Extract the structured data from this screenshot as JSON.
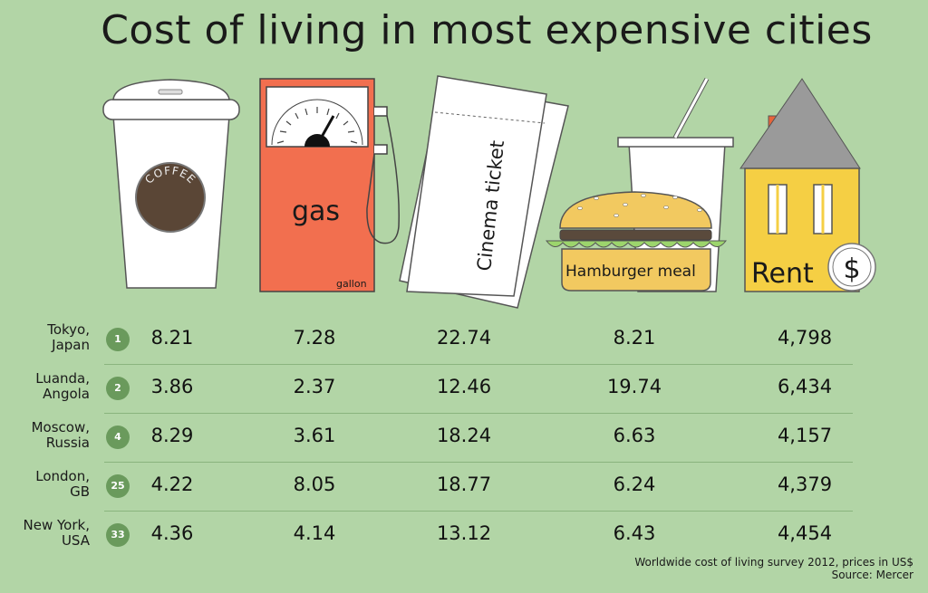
{
  "title": "Cost of living in most expensive cities",
  "icons": {
    "coffee_label": "COFFEE",
    "gas_label": "gas",
    "gallon_label": "gallon",
    "ticket_label": "Cinema ticket",
    "hamburger_label": "Hamburger meal",
    "rent_label": "Rent",
    "dollar_symbol": "$"
  },
  "chart_data": {
    "type": "table",
    "columns": [
      "COFFEE",
      "gas",
      "Cinema ticket",
      "Hamburger meal",
      "Rent"
    ],
    "rows": [
      {
        "city": "Tokyo,",
        "country": "Japan",
        "rank": "1",
        "values": [
          "8.21",
          "7.28",
          "22.74",
          "8.21",
          "4,798"
        ]
      },
      {
        "city": "Luanda,",
        "country": "Angola",
        "rank": "2",
        "values": [
          "3.86",
          "2.37",
          "12.46",
          "19.74",
          "6,434"
        ]
      },
      {
        "city": "Moscow,",
        "country": "Russia",
        "rank": "4",
        "values": [
          "8.29",
          "3.61",
          "18.24",
          "6.63",
          "4,157"
        ]
      },
      {
        "city": "London,",
        "country": "GB",
        "rank": "25",
        "values": [
          "4.22",
          "8.05",
          "18.77",
          "6.24",
          "4,379"
        ]
      },
      {
        "city": "New York,",
        "country": "USA",
        "rank": "33",
        "values": [
          "4.36",
          "4.14",
          "13.12",
          "6.43",
          "4,454"
        ]
      }
    ]
  },
  "footer": {
    "note": "Worldwide cost of living survey 2012, prices in US$",
    "source": "Source: Mercer"
  },
  "colors": {
    "background": "#b2d5a6",
    "gas_pump": "#f26f4f",
    "house": "#f5cf44",
    "rank_badge": "#6a9a5c"
  }
}
